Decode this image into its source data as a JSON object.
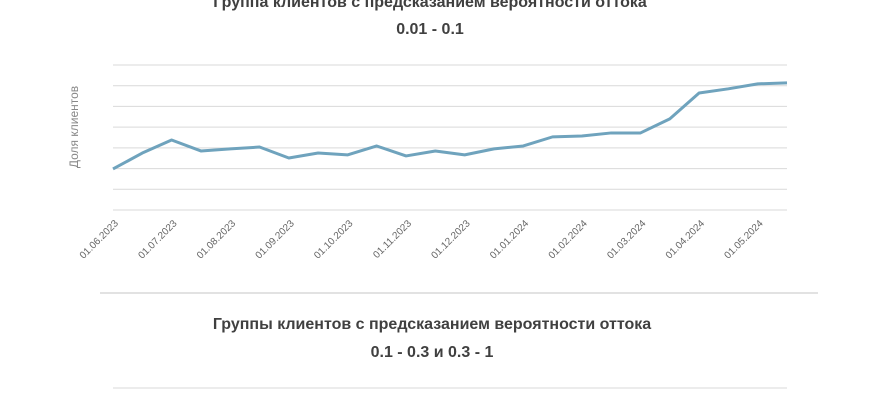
{
  "chart_data": {
    "type": "line",
    "title": "Группа клиентов с предсказанием вероятности оттока",
    "subtitle": "0.01 - 0.1",
    "y_label": "Доля клиентов",
    "categories": [
      "01.06.2023",
      null,
      "01.07.2023",
      null,
      "01.08.2023",
      null,
      "01.09.2023",
      null,
      "01.10.2023",
      null,
      "01.11.2023",
      null,
      "01.12.2023",
      null,
      "01.01.2024",
      null,
      "01.02.2024",
      null,
      "01.03.2024",
      null,
      "01.04.2024",
      null,
      "01.05.2024",
      null
    ],
    "values": [
      1.98,
      2.75,
      3.38,
      2.85,
      2.95,
      3.04,
      2.51,
      2.75,
      2.66,
      3.09,
      2.61,
      2.85,
      2.66,
      2.95,
      3.09,
      3.53,
      3.57,
      3.72,
      3.72,
      4.4,
      5.65,
      5.85,
      6.09,
      6.14
    ],
    "color": "#6fa3bd",
    "ylim": [
      0,
      7
    ],
    "grid_lines": [
      0,
      1,
      2,
      3,
      4,
      5,
      6,
      7
    ]
  },
  "next_chart": {
    "title": "Группы клиентов с предсказанием вероятности оттока",
    "subtitle": "0.1 - 0.3 и 0.3 - 1"
  }
}
